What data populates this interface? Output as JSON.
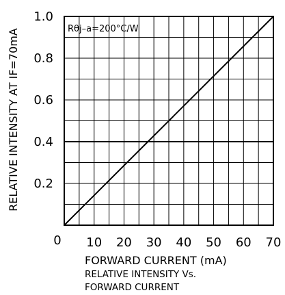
{
  "chart_data": {
    "type": "line",
    "title": "",
    "ylabel": "RELATIVE INTENSITY AT IF=70mA",
    "xlabel": "FORWARD CURRENT (mA)",
    "caption_line1": "RELATIVE   INTENSITY Vs.",
    "caption_line2": "FORWARD CURRENT",
    "annotation": "Rθj–a=200°C/W",
    "xlim": [
      0,
      70
    ],
    "ylim": [
      0,
      1.0
    ],
    "x_ticks": [
      "0",
      "10",
      "20",
      "30",
      "40",
      "50",
      "60",
      "70"
    ],
    "y_ticks": [
      "0.2",
      "0.4",
      "0.6",
      "0.8",
      "1.0"
    ],
    "grid": true,
    "series": [
      {
        "x": [
          0,
          70
        ],
        "y": [
          0,
          1.0
        ]
      }
    ]
  }
}
